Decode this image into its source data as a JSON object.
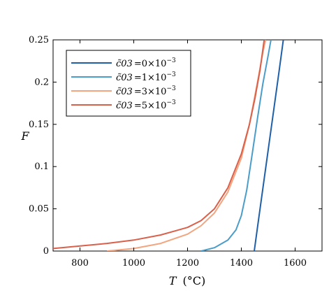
{
  "chart_data": {
    "type": "line",
    "xlabel_var": "T",
    "xlabel_unit": "(°C)",
    "ylabel": "F",
    "xlim": [
      700,
      1700
    ],
    "ylim": [
      0,
      0.25
    ],
    "xticks": [
      800,
      1000,
      1200,
      1400,
      1600
    ],
    "xtick_labels": [
      "800",
      "1000",
      "1200",
      "1400",
      "1600"
    ],
    "yticks": [
      0,
      0.05,
      0.1,
      0.15,
      0.2,
      0.25
    ],
    "ytick_labels": [
      "0",
      "0.05",
      "0.1",
      "0.15",
      "0.2",
      "0.25"
    ],
    "grid": false,
    "legend_position": "top-left",
    "series": [
      {
        "name_symbol": "c̃03",
        "name_value": "=0×10",
        "name_exp": "−3",
        "color": "#1f5fa8",
        "points": [
          [
            1448,
            0
          ],
          [
            1460,
            0.028
          ],
          [
            1480,
            0.074
          ],
          [
            1500,
            0.12
          ],
          [
            1520,
            0.166
          ],
          [
            1540,
            0.212
          ],
          [
            1556,
            0.25
          ]
        ]
      },
      {
        "name_symbol": "c̃03",
        "name_value": "=1×10",
        "name_exp": "−3",
        "color": "#4b9dc9",
        "points": [
          [
            1250,
            0
          ],
          [
            1300,
            0.004
          ],
          [
            1350,
            0.013
          ],
          [
            1380,
            0.025
          ],
          [
            1400,
            0.042
          ],
          [
            1420,
            0.072
          ],
          [
            1440,
            0.114
          ],
          [
            1460,
            0.157
          ],
          [
            1480,
            0.198
          ],
          [
            1500,
            0.232
          ],
          [
            1510,
            0.25
          ]
        ]
      },
      {
        "name_symbol": "c̃03",
        "name_value": "=3×10",
        "name_exp": "−3",
        "color": "#f2a57f",
        "points": [
          [
            900,
            0
          ],
          [
            1000,
            0.003
          ],
          [
            1100,
            0.009
          ],
          [
            1200,
            0.02
          ],
          [
            1250,
            0.03
          ],
          [
            1300,
            0.045
          ],
          [
            1350,
            0.07
          ],
          [
            1400,
            0.11
          ],
          [
            1430,
            0.15
          ],
          [
            1460,
            0.2
          ],
          [
            1480,
            0.235
          ],
          [
            1490,
            0.25
          ]
        ]
      },
      {
        "name_symbol": "c̃03",
        "name_value": "=5×10",
        "name_exp": "−3",
        "color": "#d9604a",
        "points": [
          [
            700,
            0.003
          ],
          [
            800,
            0.006
          ],
          [
            900,
            0.009
          ],
          [
            1000,
            0.013
          ],
          [
            1100,
            0.019
          ],
          [
            1200,
            0.028
          ],
          [
            1250,
            0.036
          ],
          [
            1300,
            0.05
          ],
          [
            1350,
            0.075
          ],
          [
            1400,
            0.115
          ],
          [
            1430,
            0.15
          ],
          [
            1450,
            0.18
          ],
          [
            1470,
            0.215
          ],
          [
            1485,
            0.25
          ]
        ]
      }
    ]
  }
}
